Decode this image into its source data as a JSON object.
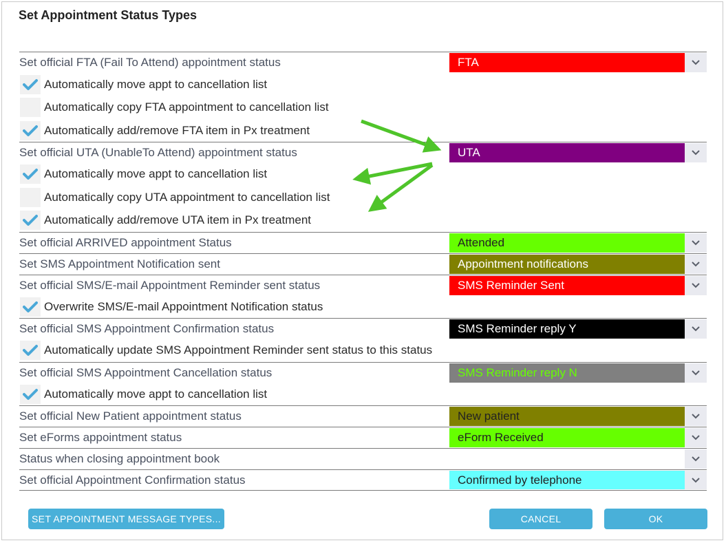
{
  "dialog": {
    "title": "Set Appointment Status Types"
  },
  "rows": {
    "fta": {
      "label": "Set official FTA (Fail To Attend) appointment status",
      "value": "FTA",
      "bg": "#ff0000",
      "fg": "#ffffff"
    },
    "fta_chk1": {
      "label": "Automatically move appt to cancellation list",
      "checked": true
    },
    "fta_chk2": {
      "label": "Automatically copy FTA appointment to cancellation list",
      "checked": false
    },
    "fta_chk3": {
      "label": "Automatically add/remove FTA item in Px treatment",
      "checked": true
    },
    "uta": {
      "label": "Set official UTA (UnableTo Attend) appointment status",
      "value": "UTA",
      "bg": "#800080",
      "fg": "#ffffff"
    },
    "uta_chk1": {
      "label": "Automatically move appt to cancellation list",
      "checked": true
    },
    "uta_chk2": {
      "label": "Automatically copy UTA appointment to cancellation list",
      "checked": false
    },
    "uta_chk3": {
      "label": "Automatically add/remove UTA item in Px treatment",
      "checked": true
    },
    "arrived": {
      "label": "Set official ARRIVED appointment Status",
      "value": "Attended",
      "bg": "#66ff00",
      "fg": "#222222"
    },
    "sms_notif": {
      "label": "Set SMS Appointment Notification sent",
      "value": "Appointment notifications",
      "bg": "#808000",
      "fg": "#ffffff"
    },
    "reminder": {
      "label": "Set official SMS/E-mail Appointment Reminder sent status",
      "value": "SMS Reminder Sent",
      "bg": "#ff0000",
      "fg": "#ffffff"
    },
    "reminder_chk": {
      "label": "Overwrite SMS/E-mail Appointment Notification status",
      "checked": true
    },
    "confirm_sms": {
      "label": "Set official SMS Appointment Confirmation status",
      "value": "SMS Reminder reply Y",
      "bg": "#000000",
      "fg": "#ffffff"
    },
    "confirm_sms_chk": {
      "label": "Automatically update SMS Appointment Reminder sent status to this status",
      "checked": true
    },
    "cancel_sms": {
      "label": "Set official SMS Appointment Cancellation status",
      "value": "SMS Reminder reply N",
      "bg": "#808080",
      "fg": "#66ff00"
    },
    "cancel_sms_chk": {
      "label": "Automatically move appt to cancellation list",
      "checked": true
    },
    "new_patient": {
      "label": "Set official New Patient appointment status",
      "value": "New patient",
      "bg": "#808000",
      "fg": "#222222"
    },
    "eforms": {
      "label": "Set eForms appointment status",
      "value": "eForm Received",
      "bg": "#66ff00",
      "fg": "#222222"
    },
    "closing": {
      "label": "Status when closing appointment book",
      "value": "",
      "bg": "#ffffff",
      "fg": "#222222"
    },
    "appt_confirm": {
      "label": "Set official Appointment Confirmation status",
      "value": "Confirmed by telephone",
      "bg": "#66ffff",
      "fg": "#222222"
    }
  },
  "buttons": {
    "message_types": "SET APPOINTMENT MESSAGE TYPES...",
    "cancel": "CANCEL",
    "ok": "OK"
  },
  "icons": {
    "dropdown": "chevron-down-icon",
    "check": "checkmark-icon",
    "annotation": "green-arrow-icon"
  },
  "colors": {
    "accent": "#49b0d9",
    "check": "#4aa8d8",
    "annotation_arrow": "#4fc42a"
  }
}
